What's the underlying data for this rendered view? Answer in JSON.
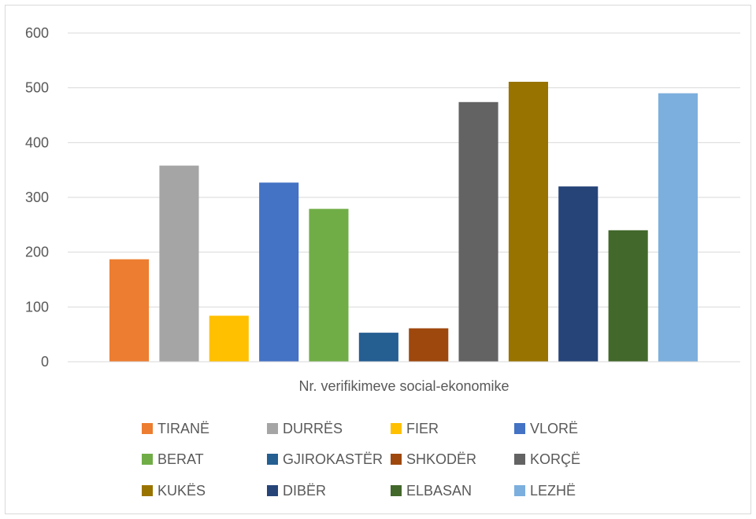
{
  "chart_data": {
    "type": "bar",
    "title": "",
    "xlabel": "Nr. verifikimeve social-ekonomike",
    "ylabel": "",
    "ylim": [
      0,
      600
    ],
    "yticks": [
      0,
      100,
      200,
      300,
      400,
      500,
      600
    ],
    "grid": true,
    "legend_position": "bottom",
    "categories": [
      "Nr. verifikimeve social-ekonomike"
    ],
    "series": [
      {
        "name": "TIRANË",
        "values": [
          187
        ],
        "color": "#ED7D31"
      },
      {
        "name": "DURRËS",
        "values": [
          358
        ],
        "color": "#A5A5A5"
      },
      {
        "name": "FIER",
        "values": [
          84
        ],
        "color": "#FFC000"
      },
      {
        "name": "VLORË",
        "values": [
          327
        ],
        "color": "#4472C4"
      },
      {
        "name": "BERAT",
        "values": [
          279
        ],
        "color": "#70AD47"
      },
      {
        "name": "GJIROKASTËR",
        "values": [
          53
        ],
        "color": "#255E91"
      },
      {
        "name": "SHKODËR",
        "values": [
          61
        ],
        "color": "#9E480E"
      },
      {
        "name": "KORÇË",
        "values": [
          474
        ],
        "color": "#636363"
      },
      {
        "name": "KUKËS",
        "values": [
          511
        ],
        "color": "#997300"
      },
      {
        "name": "DIBËR",
        "values": [
          320
        ],
        "color": "#264478"
      },
      {
        "name": "ELBASAN",
        "values": [
          240
        ],
        "color": "#43682B"
      },
      {
        "name": "LEZHË",
        "values": [
          490
        ],
        "color": "#7CAFDD"
      }
    ]
  }
}
